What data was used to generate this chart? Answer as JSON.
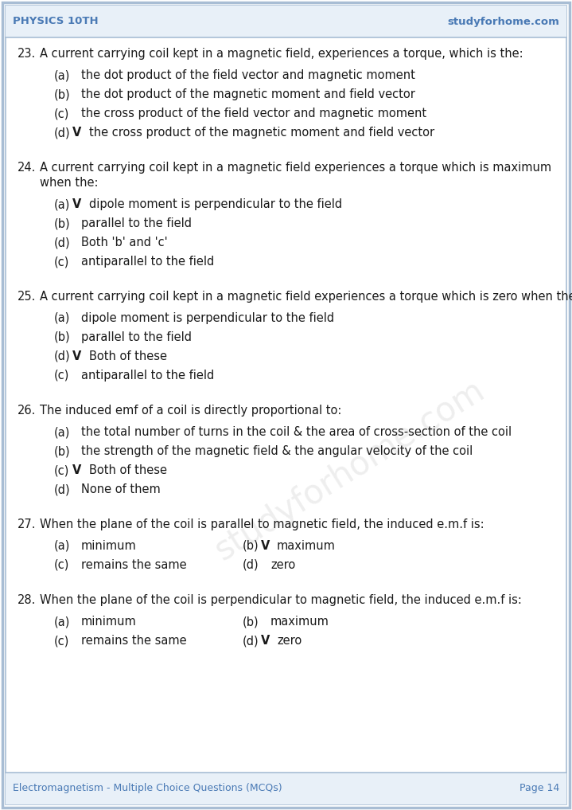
{
  "header_left": "PHYSICS 10TH",
  "header_right": "studyforhome.com",
  "footer_left": "Electromagnetism - Multiple Choice Questions (MCQs)",
  "footer_right": "Page 14",
  "bg_color": "#ffffff",
  "border_outer_color": "#a8bdd4",
  "border_inner_color": "#a8bdd4",
  "header_bg": "#e8f0f8",
  "header_color": "#4a7ab5",
  "text_color": "#1a1a1a",
  "questions": [
    {
      "num": "23.",
      "question": "A current carrying coil kept in a magnetic field, experiences a torque, which is the:",
      "options": [
        {
          "label": "(a)",
          "check": "",
          "text": "the dot product of the field vector and magnetic moment"
        },
        {
          "label": "(b)",
          "check": "",
          "text": "the dot product of the magnetic moment and field vector"
        },
        {
          "label": "(c)",
          "check": "",
          "text": "the cross product of the field vector and magnetic moment"
        },
        {
          "label": "(d)",
          "check": "V",
          "text": "the cross product of the magnetic moment and field vector"
        }
      ]
    },
    {
      "num": "24.",
      "question": "A current carrying coil kept in a magnetic field experiences a torque which is maximum\nwhen the:",
      "options": [
        {
          "label": "(a)",
          "check": "V",
          "text": "dipole moment is perpendicular to the field"
        },
        {
          "label": "(b)",
          "check": "",
          "text": "parallel to the field"
        },
        {
          "label": "(d)",
          "check": "",
          "text": "Both 'b' and 'c'"
        },
        {
          "label": "(c)",
          "check": "",
          "text": "antiparallel to the field"
        }
      ]
    },
    {
      "num": "25.",
      "question": "A current carrying coil kept in a magnetic field experiences a torque which is zero when the:",
      "options": [
        {
          "label": "(a)",
          "check": "",
          "text": "dipole moment is perpendicular to the field"
        },
        {
          "label": "(b)",
          "check": "",
          "text": "parallel to the field"
        },
        {
          "label": "(d)",
          "check": "V",
          "text": "Both of these"
        },
        {
          "label": "(c)",
          "check": "",
          "text": "antiparallel to the field"
        }
      ]
    },
    {
      "num": "26.",
      "question": "The induced emf of a coil is directly proportional to:",
      "options": [
        {
          "label": "(a)",
          "check": "",
          "text": "the total number of turns in the coil & the area of cross-section of the coil"
        },
        {
          "label": "(b)",
          "check": "",
          "text": "the strength of the magnetic field & the angular velocity of the coil"
        },
        {
          "label": "(c)",
          "check": "V",
          "text": "Both of these"
        },
        {
          "label": "(d)",
          "check": "",
          "text": "None of them"
        }
      ]
    },
    {
      "num": "27.",
      "question": "When the plane of the coil is parallel to magnetic field, the induced e.m.f is:",
      "options_2col": [
        {
          "label": "(a)",
          "check": "",
          "text": "minimum",
          "label2": "(b)",
          "check2": "V",
          "text2": "maximum"
        },
        {
          "label": "(c)",
          "check": "",
          "text": "remains the same",
          "label2": "(d)",
          "check2": "",
          "text2": "zero"
        }
      ]
    },
    {
      "num": "28.",
      "question": "When the plane of the coil is perpendicular to magnetic field, the induced e.m.f is:",
      "options_2col": [
        {
          "label": "(a)",
          "check": "",
          "text": "minimum",
          "label2": "(b)",
          "check2": "",
          "text2": "maximum"
        },
        {
          "label": "(c)",
          "check": "",
          "text": "remains the same",
          "label2": "(d)",
          "check2": "V",
          "text2": "zero"
        }
      ]
    }
  ]
}
